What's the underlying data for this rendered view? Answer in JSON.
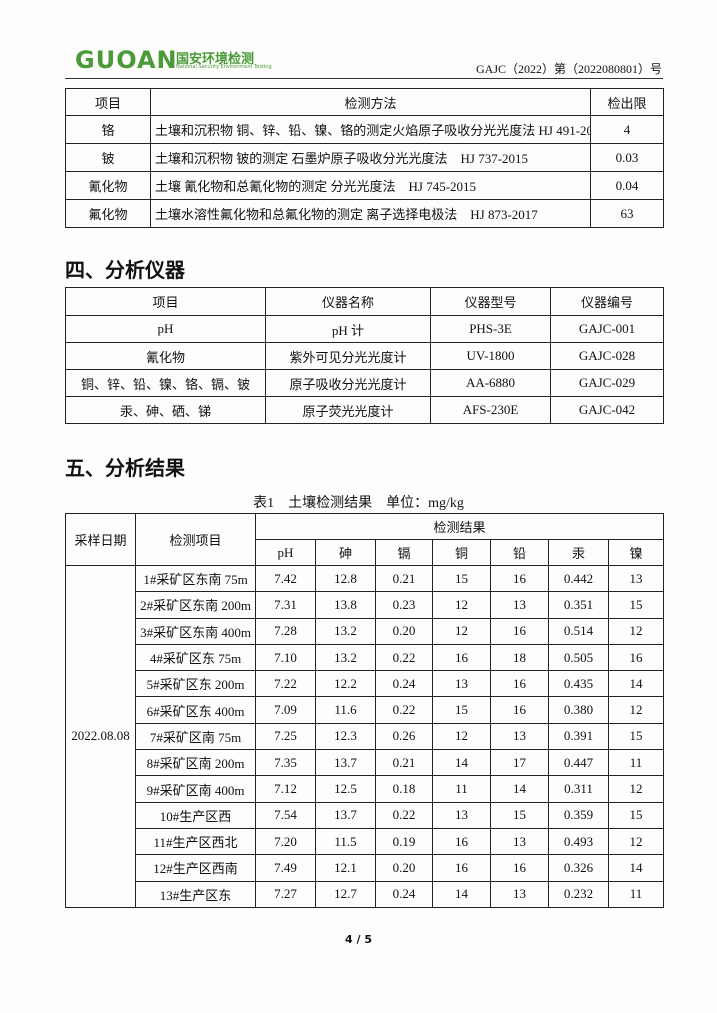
{
  "header": {
    "logo": "GUOAN",
    "logo_cn": "国安环境检测",
    "logo_en": "National Security Environment Testing",
    "report_no": "GAJC（2022）第（2022080801）号"
  },
  "methods_table": {
    "columns": [
      "项目",
      "检测方法",
      "检出限"
    ],
    "rows": [
      [
        "铬",
        "土壤和沉积物 铜、锌、铅、镍、铬的测定火焰原子吸收分光光度法 HJ 491-2019",
        "4"
      ],
      [
        "铍",
        "土壤和沉积物 铍的测定 石墨炉原子吸收分光光度法　HJ 737-2015",
        "0.03"
      ],
      [
        "氰化物",
        "土壤 氰化物和总氰化物的测定 分光光度法　HJ 745-2015",
        "0.04"
      ],
      [
        "氟化物",
        "土壤水溶性氟化物和总氟化物的测定 离子选择电极法　HJ 873-2017",
        "63"
      ]
    ]
  },
  "section4": {
    "title": "四、分析仪器"
  },
  "instruments_table": {
    "columns": [
      "项目",
      "仪器名称",
      "仪器型号",
      "仪器编号"
    ],
    "rows": [
      [
        "pH",
        "pH 计",
        "PHS-3E",
        "GAJC-001"
      ],
      [
        "氰化物",
        "紫外可见分光光度计",
        "UV-1800",
        "GAJC-028"
      ],
      [
        "铜、锌、铅、镍、铬、镉、铍",
        "原子吸收分光光度计",
        "AA-6880",
        "GAJC-029"
      ],
      [
        "汞、砷、硒、锑",
        "原子荧光光度计",
        "AFS-230E",
        "GAJC-042"
      ]
    ]
  },
  "section5": {
    "title": "五、分析结果"
  },
  "results_table": {
    "caption": "表1　土壤检测结果　单位：mg/kg",
    "date_header": "采样日期",
    "item_header": "检测项目",
    "group_header": "检测结果",
    "columns": [
      "pH",
      "砷",
      "镉",
      "铜",
      "铅",
      "汞",
      "镍"
    ],
    "date": "2022.08.08",
    "rows": [
      [
        "1#采矿区东南 75m",
        "7.42",
        "12.8",
        "0.21",
        "15",
        "16",
        "0.442",
        "13"
      ],
      [
        "2#采矿区东南 200m",
        "7.31",
        "13.8",
        "0.23",
        "12",
        "13",
        "0.351",
        "15"
      ],
      [
        "3#采矿区东南 400m",
        "7.28",
        "13.2",
        "0.20",
        "12",
        "16",
        "0.514",
        "12"
      ],
      [
        "4#采矿区东 75m",
        "7.10",
        "13.2",
        "0.22",
        "16",
        "18",
        "0.505",
        "16"
      ],
      [
        "5#采矿区东 200m",
        "7.22",
        "12.2",
        "0.24",
        "13",
        "16",
        "0.435",
        "14"
      ],
      [
        "6#采矿区东 400m",
        "7.09",
        "11.6",
        "0.22",
        "15",
        "16",
        "0.380",
        "12"
      ],
      [
        "7#采矿区南 75m",
        "7.25",
        "12.3",
        "0.26",
        "12",
        "13",
        "0.391",
        "15"
      ],
      [
        "8#采矿区南 200m",
        "7.35",
        "13.7",
        "0.21",
        "14",
        "17",
        "0.447",
        "11"
      ],
      [
        "9#采矿区南 400m",
        "7.12",
        "12.5",
        "0.18",
        "11",
        "14",
        "0.311",
        "12"
      ],
      [
        "10#生产区西",
        "7.54",
        "13.7",
        "0.22",
        "13",
        "15",
        "0.359",
        "15"
      ],
      [
        "11#生产区西北",
        "7.20",
        "11.5",
        "0.19",
        "16",
        "13",
        "0.493",
        "12"
      ],
      [
        "12#生产区西南",
        "7.49",
        "12.1",
        "0.20",
        "16",
        "16",
        "0.326",
        "14"
      ],
      [
        "13#生产区东",
        "7.27",
        "12.7",
        "0.24",
        "14",
        "13",
        "0.232",
        "11"
      ]
    ]
  },
  "footer": {
    "page": "4 / 5"
  }
}
